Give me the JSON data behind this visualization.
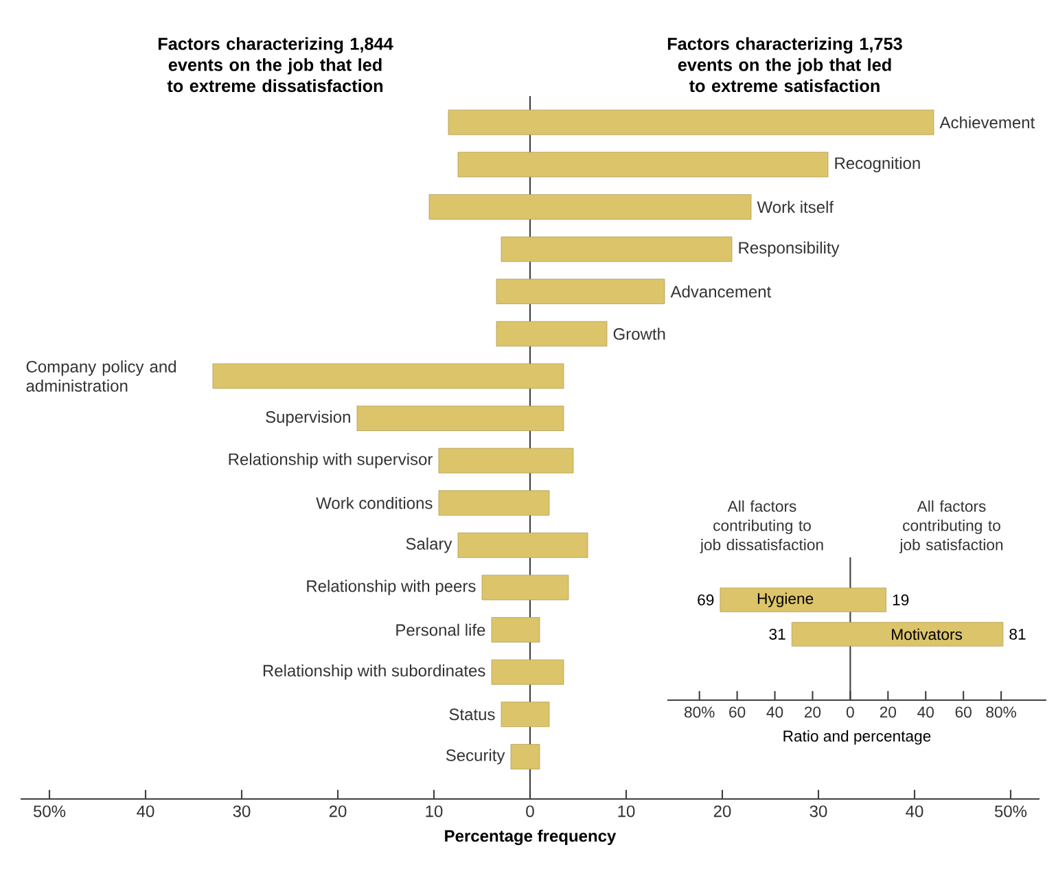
{
  "chart_data": [
    {
      "type": "bar",
      "orientation": "horizontal",
      "xlabel": "Percentage frequency",
      "annotations": [
        "Factors characterizing 1,844 events on the job that led to extreme dissatisfaction",
        "Factors characterizing 1,753 events on the job that led to extreme satisfaction"
      ],
      "categories": [
        "Achievement",
        "Recognition",
        "Work itself",
        "Responsibility",
        "Advancement",
        "Growth",
        "Company policy and administration",
        "Supervision",
        "Relationship with supervisor",
        "Work conditions",
        "Salary",
        "Relationship with peers",
        "Personal life",
        "Relationship with subordinates",
        "Status",
        "Security"
      ],
      "color": "#dcc46a",
      "base": [
        -8.5,
        -7.5,
        -10.5,
        -3,
        -3.5,
        -3.5,
        -33,
        -18,
        -9.5,
        -9.5,
        -7.5,
        -5,
        -4,
        -4,
        -3,
        -2
      ],
      "values": [
        50.5,
        38.5,
        33.5,
        24,
        17.5,
        11.5,
        36.5,
        21.5,
        14,
        11.5,
        13.5,
        9,
        5,
        7.5,
        5,
        3
      ],
      "xlim": [
        -53,
        53
      ],
      "xticks": [
        {
          "value": -50,
          "label": "50%"
        },
        {
          "value": -40,
          "label": "40"
        },
        {
          "value": -30,
          "label": "30"
        },
        {
          "value": -20,
          "label": "20"
        },
        {
          "value": -10,
          "label": "10"
        },
        0,
        10,
        20,
        30,
        40,
        {
          "value": 50,
          "label": "50%"
        }
      ],
      "ref_lines": [
        {
          "axis": "x",
          "value": 0
        }
      ]
    },
    {
      "type": "bar",
      "orientation": "horizontal",
      "xlabel": "Ratio and percentage",
      "annotations": [
        "All factors contributing to job dissatisfaction",
        "All factors contributing to job satisfaction",
        {
          "text": "69",
          "x": -69,
          "y": "Hygiene"
        },
        {
          "text": "19",
          "x": 19,
          "y": "Hygiene"
        },
        {
          "text": "31",
          "x": -31,
          "y": "Motivators"
        },
        {
          "text": "81",
          "x": 81,
          "y": "Motivators"
        }
      ],
      "categories": [
        "Hygiene",
        "Motivators"
      ],
      "color": "#dcc46a",
      "base": [
        -69,
        -31
      ],
      "values": [
        88,
        112
      ],
      "xlim": [
        -97,
        104
      ],
      "xticks": [
        {
          "value": -80,
          "label": "80%"
        },
        {
          "value": -60,
          "label": "60"
        },
        {
          "value": -40,
          "label": "40"
        },
        {
          "value": -20,
          "label": "20"
        },
        0,
        20,
        40,
        60,
        {
          "value": 80,
          "label": "80%"
        }
      ],
      "ref_lines": [
        {
          "axis": "x",
          "value": 0
        }
      ]
    }
  ]
}
